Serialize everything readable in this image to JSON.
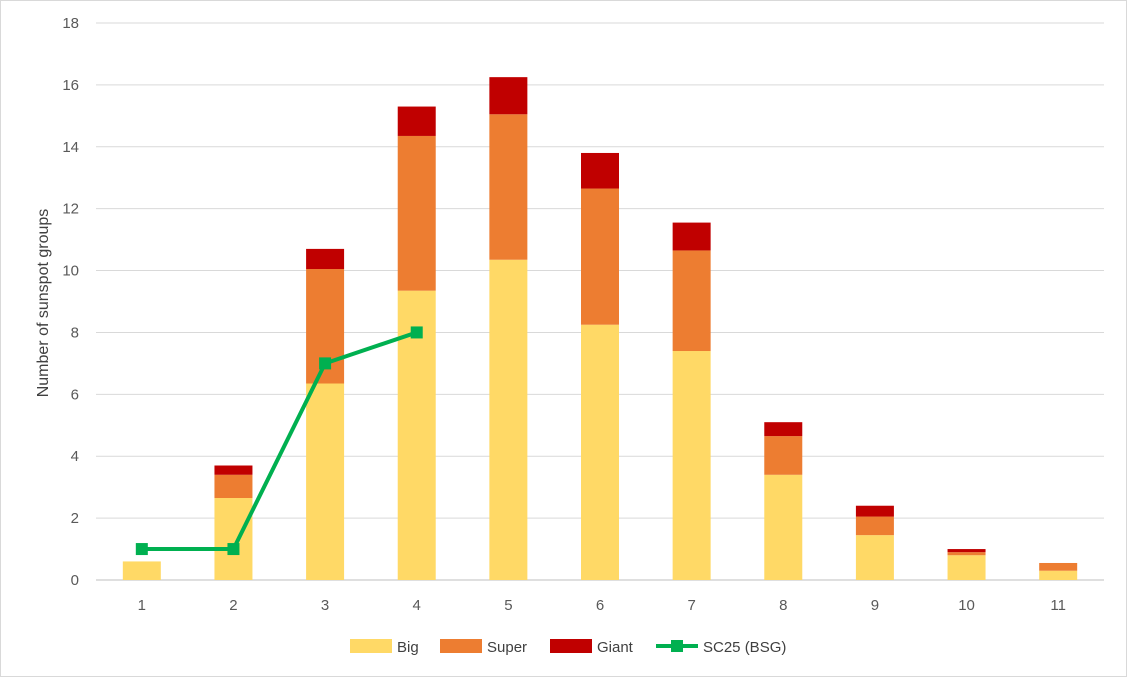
{
  "chart_data": {
    "type": "bar",
    "stacked": true,
    "title": "",
    "xlabel": "",
    "ylabel": "Number of sunspot groups",
    "ylim": [
      0,
      18
    ],
    "yticks": [
      "0",
      "2",
      "4",
      "6",
      "8",
      "10",
      "12",
      "14",
      "16",
      "18"
    ],
    "categories": [
      "1",
      "2",
      "3",
      "4",
      "5",
      "6",
      "7",
      "8",
      "9",
      "10",
      "11"
    ],
    "grid": true,
    "legend_position": "bottom",
    "series": [
      {
        "name": "Big",
        "kind": "bar",
        "color": "#FFD966",
        "values": [
          0.6,
          2.65,
          6.35,
          9.35,
          10.35,
          8.25,
          7.4,
          3.4,
          1.45,
          0.8,
          0.3
        ]
      },
      {
        "name": "Super",
        "kind": "bar",
        "color": "#ED7D31",
        "values": [
          0,
          0.75,
          3.7,
          5.0,
          4.7,
          4.4,
          3.25,
          1.25,
          0.6,
          0.1,
          0.25
        ]
      },
      {
        "name": "Giant",
        "kind": "bar",
        "color": "#C00000",
        "values": [
          0,
          0.3,
          0.65,
          0.95,
          1.2,
          1.15,
          0.9,
          0.45,
          0.35,
          0.1,
          0
        ]
      },
      {
        "name": "SC25 (BSG)",
        "kind": "line",
        "color": "#00B050",
        "values": [
          1,
          1,
          7,
          8,
          null,
          null,
          null,
          null,
          null,
          null,
          null
        ]
      }
    ]
  }
}
